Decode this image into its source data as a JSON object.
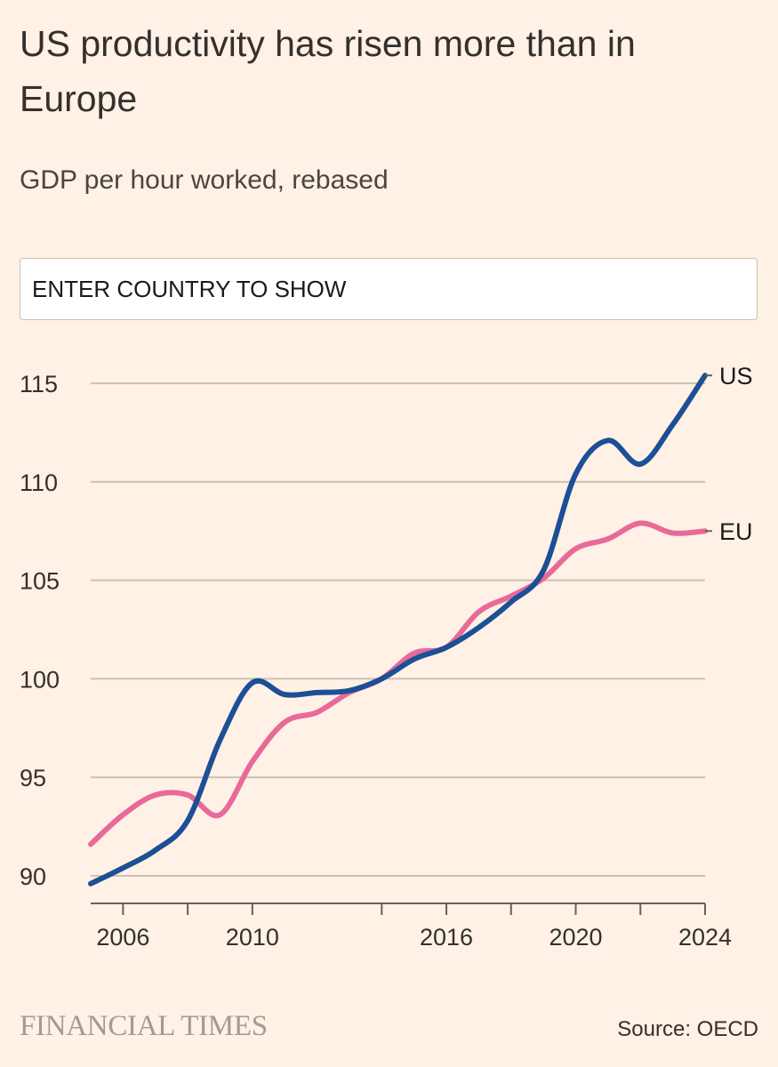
{
  "header": {
    "title": "US productivity has risen more than in Europe",
    "subtitle": "GDP per hour worked, rebased"
  },
  "search": {
    "placeholder": "ENTER COUNTRY TO SHOW",
    "value": ""
  },
  "footer": {
    "logo": "FINANCIAL TIMES",
    "source": "Source: OECD"
  },
  "colors": {
    "background": "#fff1e5",
    "us": "#1c4f96",
    "eu": "#e8699a",
    "grid": "#ccc1b7",
    "text": "#33302e"
  },
  "chart_data": {
    "type": "line",
    "title": "US productivity has risen more than in Europe",
    "subtitle": "GDP per hour worked, rebased",
    "xlabel": "",
    "ylabel": "",
    "xlim": [
      2005,
      2024
    ],
    "ylim": [
      88.6,
      115.5
    ],
    "yticks": [
      90,
      95,
      100,
      105,
      110,
      115
    ],
    "ytick_labels": [
      "90",
      "95",
      "100",
      "105",
      "110",
      "115"
    ],
    "xticks": [
      2006,
      2008,
      2010,
      2014,
      2016,
      2018,
      2020,
      2022,
      2024
    ],
    "xtick_labels": [
      {
        "year": 2006,
        "label": "2006"
      },
      {
        "year": 2010,
        "label": "2010"
      },
      {
        "year": 2016,
        "label": "2016"
      },
      {
        "year": 2020,
        "label": "2020"
      },
      {
        "year": 2024,
        "label": "2024"
      }
    ],
    "grid": true,
    "series": [
      {
        "name": "US",
        "label": "US",
        "color": "#1c4f96",
        "x": [
          2005,
          2006,
          2007,
          2008,
          2009,
          2010,
          2011,
          2012,
          2013,
          2014,
          2015,
          2016,
          2017,
          2018,
          2019,
          2020,
          2021,
          2022,
          2023,
          2024
        ],
        "values": [
          89.6,
          90.4,
          91.3,
          92.8,
          96.9,
          99.8,
          99.2,
          99.3,
          99.4,
          100.0,
          101.0,
          101.6,
          102.6,
          103.9,
          105.5,
          110.4,
          112.1,
          110.9,
          112.9,
          115.4
        ]
      },
      {
        "name": "EU",
        "label": "EU",
        "color": "#e8699a",
        "x": [
          2005,
          2006,
          2007,
          2008,
          2009,
          2010,
          2011,
          2012,
          2013,
          2014,
          2015,
          2016,
          2017,
          2018,
          2019,
          2020,
          2021,
          2022,
          2023,
          2024
        ],
        "values": [
          91.6,
          93.1,
          94.1,
          94.1,
          93.1,
          95.8,
          97.8,
          98.3,
          99.3,
          100.0,
          101.3,
          101.6,
          103.4,
          104.2,
          105.1,
          106.6,
          107.1,
          107.9,
          107.4,
          107.5
        ]
      }
    ]
  }
}
